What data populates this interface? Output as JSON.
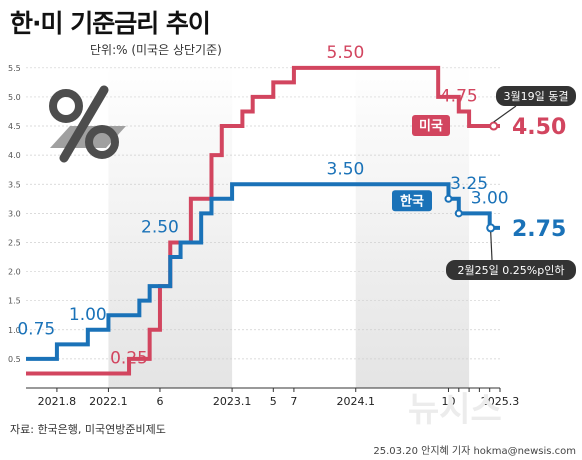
{
  "header": {
    "title": "한·미 기준금리 추이",
    "subtitle": "단위:% (미국은 상단기준)"
  },
  "footer": {
    "source": "자료: 한국은행, 미국연방준비제도",
    "credit": "25.03.20 안지혜 기자 hokma@newsis.com",
    "watermark": "뉴시스"
  },
  "colors": {
    "us": "#d2455f",
    "korea": "#1a72b8",
    "shade": "#e4e4e4",
    "axis": "#333333",
    "callout_bg": "#333333"
  },
  "icons": {
    "percent_graphic": "percent-icon"
  },
  "chart_data": {
    "type": "line",
    "step": true,
    "title": "한·미 기준금리 추이",
    "ylabel": "단위:% (미국은 상단기준)",
    "ylim": [
      0,
      5.6
    ],
    "yticks": [
      "0.5",
      "1.0",
      "1.5",
      "2.0",
      "2.5",
      "3.0",
      "3.5",
      "4.0",
      "4.5",
      "5.0",
      "5.5"
    ],
    "xlim": [
      "2021-05",
      "2025-03"
    ],
    "xticks": [
      {
        "x": "2021-08",
        "label": "2021.8"
      },
      {
        "x": "2022-01",
        "label": "2022.1"
      },
      {
        "x": "2022-06",
        "label": "6"
      },
      {
        "x": "2023-01",
        "label": "2023.1"
      },
      {
        "x": "2023-05",
        "label": "5"
      },
      {
        "x": "2023-07",
        "label": "7"
      },
      {
        "x": "2024-01",
        "label": "2024.1"
      },
      {
        "x": "2024-10",
        "label": "10"
      },
      {
        "x": "2024-11",
        "label": ""
      },
      {
        "x": "2024-12",
        "label": ""
      },
      {
        "x": "2025-01",
        "label": ""
      },
      {
        "x": "2025-02",
        "label": ""
      },
      {
        "x": "2025-03",
        "label": "2025.3"
      }
    ],
    "shaded_periods": [
      [
        "2022-01",
        "2023-01"
      ],
      [
        "2024-01",
        "2024-12"
      ]
    ],
    "series": [
      {
        "name": "미국",
        "color": "#d2455f",
        "points": [
          {
            "x": "2021-05",
            "y": 0.25
          },
          {
            "x": "2022-03",
            "y": 0.5
          },
          {
            "x": "2022-05",
            "y": 1.0
          },
          {
            "x": "2022-06",
            "y": 1.75
          },
          {
            "x": "2022-07",
            "y": 2.5
          },
          {
            "x": "2022-09",
            "y": 3.25
          },
          {
            "x": "2022-11",
            "y": 4.0
          },
          {
            "x": "2022-12",
            "y": 4.5
          },
          {
            "x": "2023-02",
            "y": 4.75
          },
          {
            "x": "2023-03",
            "y": 5.0
          },
          {
            "x": "2023-05",
            "y": 5.25
          },
          {
            "x": "2023-07",
            "y": 5.5
          },
          {
            "x": "2024-09",
            "y": 5.0
          },
          {
            "x": "2024-11",
            "y": 4.75
          },
          {
            "x": "2024-12",
            "y": 4.5
          },
          {
            "x": "2025-03",
            "y": 4.5
          }
        ]
      },
      {
        "name": "한국",
        "color": "#1a72b8",
        "points": [
          {
            "x": "2021-05",
            "y": 0.5
          },
          {
            "x": "2021-08",
            "y": 0.75
          },
          {
            "x": "2021-11",
            "y": 1.0
          },
          {
            "x": "2022-01",
            "y": 1.25
          },
          {
            "x": "2022-04",
            "y": 1.5
          },
          {
            "x": "2022-05",
            "y": 1.75
          },
          {
            "x": "2022-07",
            "y": 2.25
          },
          {
            "x": "2022-08",
            "y": 2.5
          },
          {
            "x": "2022-10",
            "y": 3.0
          },
          {
            "x": "2022-11",
            "y": 3.25
          },
          {
            "x": "2023-01",
            "y": 3.5
          },
          {
            "x": "2024-10",
            "y": 3.25
          },
          {
            "x": "2024-11",
            "y": 3.0
          },
          {
            "x": "2025-02",
            "y": 2.75
          },
          {
            "x": "2025-03",
            "y": 2.75
          }
        ]
      }
    ],
    "annotations": {
      "us_rate_labels": [
        {
          "x": "2022-03",
          "y": 0.25,
          "text": "0.25"
        },
        {
          "x": "2023-12",
          "y": 5.5,
          "text": "5.50"
        },
        {
          "x": "2024-11",
          "y": 4.75,
          "text": "4.75"
        }
      ],
      "korea_rate_labels": [
        {
          "x": "2021-06",
          "y": 0.75,
          "text": "0.75"
        },
        {
          "x": "2021-11",
          "y": 1.0,
          "text": "1.00"
        },
        {
          "x": "2022-06",
          "y": 2.5,
          "text": "2.50"
        },
        {
          "x": "2023-12",
          "y": 3.5,
          "text": "3.50"
        },
        {
          "x": "2024-12",
          "y": 3.25,
          "text": "3.25"
        },
        {
          "x": "2025-02",
          "y": 3.0,
          "text": "3.00"
        }
      ],
      "us_name_tag": "미국",
      "korea_name_tag": "한국",
      "us_end_value": "4.50",
      "korea_end_value": "2.75",
      "us_callout": "3월19일 동결",
      "korea_callout": "2월25일 0.25%p인하"
    }
  }
}
